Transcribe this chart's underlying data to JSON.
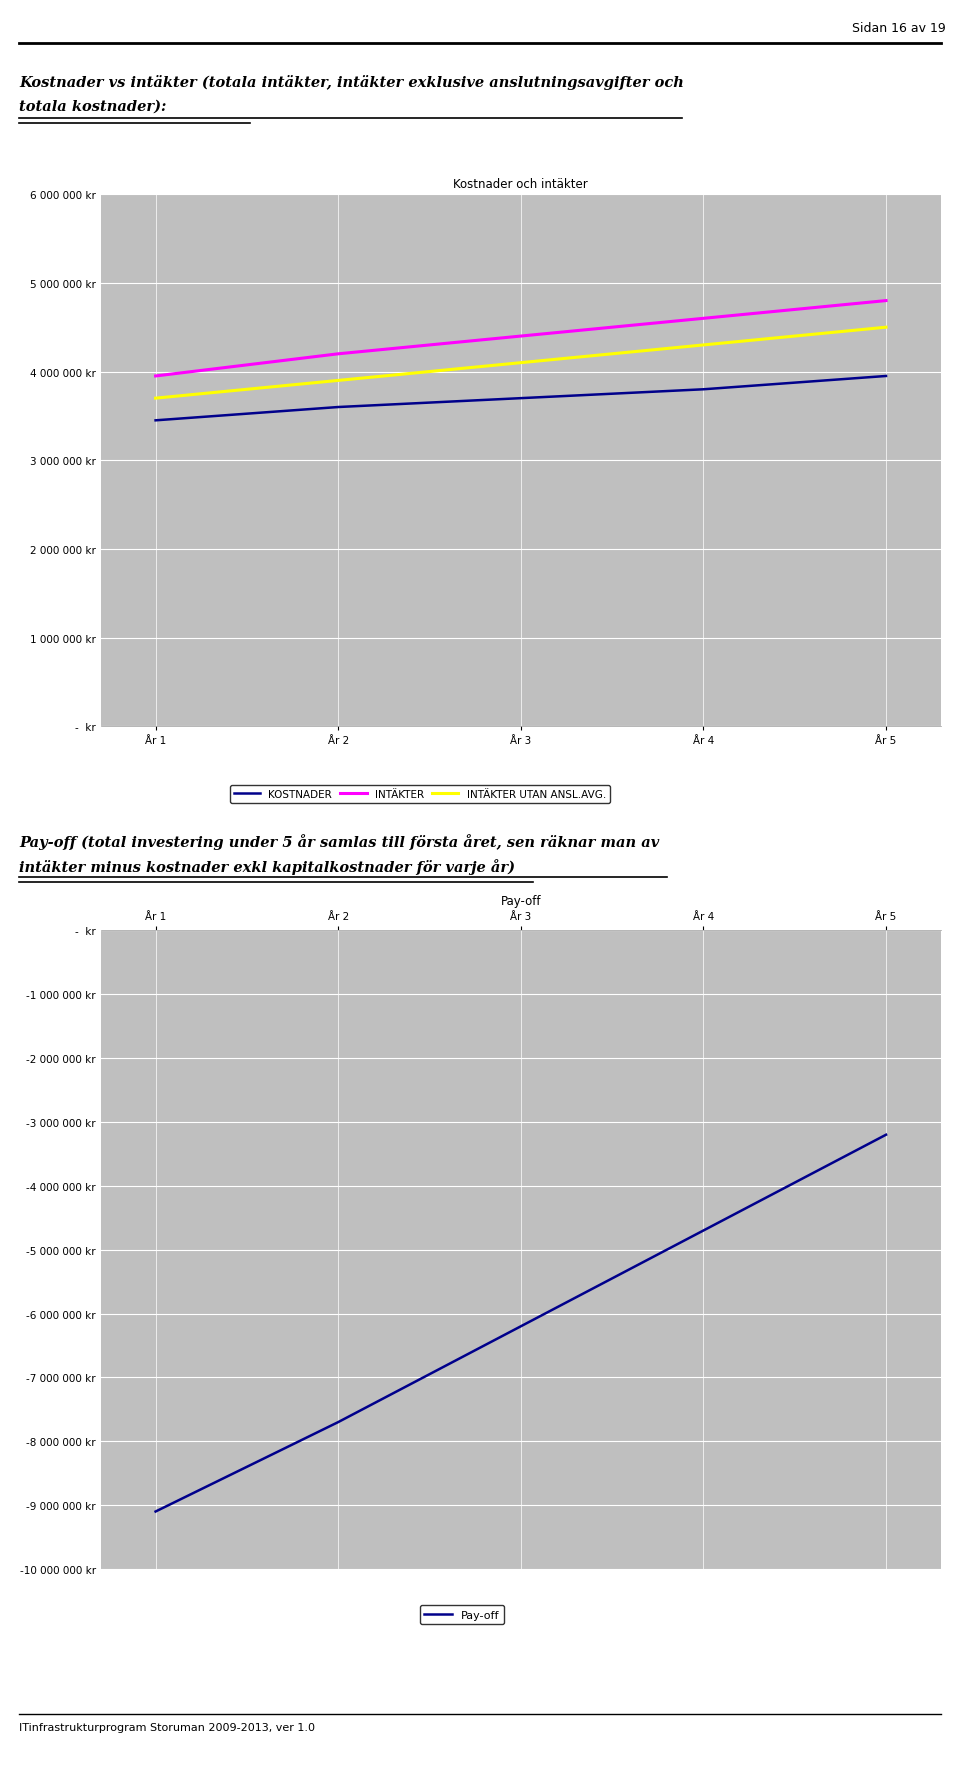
{
  "page_label": "Sidan 16 av 19",
  "section1_title_line1": "Kostnader vs intäkter (totala intäkter, intäkter exklusive anslutningsavgifter och",
  "section1_title_line2": "totala kostnader):",
  "chart1_title": "Kostnader och intäkter",
  "chart1_xlabel": [
    "År 1",
    "År 2",
    "År 3",
    "År 4",
    "År 5"
  ],
  "chart1_x": [
    1,
    2,
    3,
    4,
    5
  ],
  "chart1_kostnader": [
    3450000,
    3600000,
    3700000,
    3800000,
    3950000
  ],
  "chart1_intakter": [
    3950000,
    4200000,
    4400000,
    4600000,
    4800000
  ],
  "chart1_intakter_utan": [
    3700000,
    3900000,
    4100000,
    4300000,
    4500000
  ],
  "chart1_ylim": [
    0,
    6000000
  ],
  "chart1_yticks": [
    0,
    1000000,
    2000000,
    3000000,
    4000000,
    5000000,
    6000000
  ],
  "chart1_color_kostnader": "#00008B",
  "chart1_color_intakter": "#FF00FF",
  "chart1_color_intakter_utan": "#FFFF00",
  "chart1_legend": [
    "KOSTNADER",
    "INTÄKTER",
    "INTÄKTER UTAN ANSL.AVG."
  ],
  "section2_title_line1": "Pay-off (total investering under 5 år samlas till första året, sen räknar man av",
  "section2_title_line2": "intäkter minus kostnader exkl kapitalkostnader för varje år)",
  "chart2_title": "Pay-off",
  "chart2_xlabel": [
    "År 1",
    "År 2",
    "År 3",
    "År 4",
    "År 5"
  ],
  "chart2_x": [
    1,
    2,
    3,
    4,
    5
  ],
  "chart2_payoff": [
    -9100000,
    -7700000,
    -6200000,
    -4700000,
    -3200000
  ],
  "chart2_ylim": [
    -10000000,
    0
  ],
  "chart2_yticks": [
    0,
    -1000000,
    -2000000,
    -3000000,
    -4000000,
    -5000000,
    -6000000,
    -7000000,
    -8000000,
    -9000000,
    -10000000
  ],
  "chart2_color_payoff": "#00008B",
  "chart2_legend": [
    "Pay-off"
  ],
  "footer": "ITinfrastrukturprogram Storuman 2009-2013, ver 1.0",
  "bg_color": "#BFBFBF"
}
